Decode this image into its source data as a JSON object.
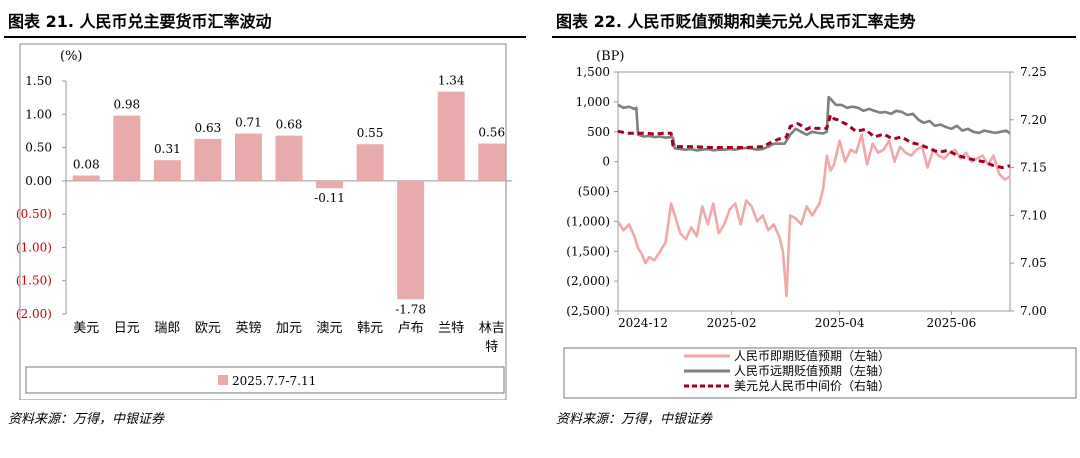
{
  "left": {
    "title": "图表 21. 人民币兑主要货币汇率波动",
    "source": "资料来源：万得，中银证券",
    "chart_data": {
      "type": "bar",
      "ylabel": "(%)",
      "ylim": [
        -2.0,
        1.5
      ],
      "yticks": [
        "1.50",
        "1.00",
        "0.50",
        "0.00",
        "(0.50)",
        "(1.00)",
        "(1.50)",
        "(2.00)"
      ],
      "ytick_values": [
        1.5,
        1.0,
        0.5,
        0.0,
        -0.5,
        -1.0,
        -1.5,
        -2.0
      ],
      "categories": [
        "美元",
        "日元",
        "瑞郎",
        "欧元",
        "英镑",
        "加元",
        "澳元",
        "韩元",
        "卢布",
        "兰特",
        "林吉特"
      ],
      "values": [
        0.08,
        0.98,
        0.31,
        0.63,
        0.71,
        0.68,
        -0.11,
        0.55,
        -1.78,
        1.34,
        0.56
      ],
      "labels": [
        "0.08",
        "0.98",
        "0.31",
        "0.63",
        "0.71",
        "0.68",
        "-0.11",
        "0.55",
        "-1.78",
        "1.34",
        "0.56"
      ],
      "legend": "2025.7.7-7.11",
      "bar_color": "#e8aaaa",
      "negative_tick_color": "#cc0000"
    }
  },
  "right": {
    "title": "图表 22. 人民币贬值预期和美元兑人民币汇率走势",
    "source": "资料来源：万得，中银证券",
    "chart_data": {
      "type": "line",
      "ylabel_left": "(BP)",
      "ylim_left": [
        -2500,
        1500
      ],
      "yticks_left": [
        "1,500",
        "1,000",
        "500",
        "0",
        "(500)",
        "(1,000)",
        "(1,500)",
        "(2,000)",
        "(2,500)"
      ],
      "ytick_values_left": [
        1500,
        1000,
        500,
        0,
        -500,
        -1000,
        -1500,
        -2000,
        -2500
      ],
      "ylim_right": [
        7.0,
        7.25
      ],
      "yticks_right": [
        "7.25",
        "7.20",
        "7.15",
        "7.10",
        "7.05",
        "7.00"
      ],
      "ytick_values_right": [
        7.25,
        7.2,
        7.15,
        7.1,
        7.05,
        7.0
      ],
      "xlim": [
        0,
        214
      ],
      "xticks": [
        "2024-12",
        "2025-02",
        "2025-04",
        "2025-06"
      ],
      "xtick_values": [
        0,
        62,
        121,
        182
      ],
      "series": [
        {
          "name": "人民币即期贬值预期（左轴）",
          "axis": "left",
          "color": "#f0a8a8",
          "dash": "",
          "x": [
            0,
            3,
            6,
            9,
            11,
            13,
            15,
            17,
            20,
            23,
            26,
            29,
            31,
            34,
            37,
            40,
            43,
            46,
            49,
            52,
            55,
            58,
            61,
            64,
            67,
            70,
            73,
            76,
            79,
            82,
            85,
            88,
            90,
            92,
            94,
            97,
            100,
            103,
            106,
            108,
            110,
            112,
            114,
            116,
            118,
            121,
            124,
            127,
            130,
            133,
            136,
            139,
            142,
            145,
            148,
            151,
            154,
            157,
            160,
            163,
            166,
            169,
            172,
            175,
            178,
            181,
            184,
            187,
            190,
            193,
            196,
            199,
            202,
            205,
            208,
            211,
            214
          ],
          "y": [
            -1000,
            -1150,
            -1050,
            -1250,
            -1450,
            -1550,
            -1700,
            -1600,
            -1650,
            -1500,
            -1350,
            -700,
            -900,
            -1200,
            -1300,
            -1100,
            -1250,
            -750,
            -1050,
            -700,
            -1200,
            -1050,
            -800,
            -700,
            -1050,
            -650,
            -750,
            -1000,
            -900,
            -1150,
            -1050,
            -1250,
            -1500,
            -2250,
            -900,
            -950,
            -1050,
            -750,
            -900,
            -800,
            -700,
            -450,
            100,
            -150,
            -50,
            350,
            0,
            200,
            150,
            450,
            -50,
            300,
            150,
            200,
            350,
            0,
            250,
            150,
            100,
            200,
            250,
            -100,
            200,
            100,
            50,
            150,
            200,
            50,
            150,
            0,
            50,
            100,
            -50,
            100,
            -200,
            -300,
            -250
          ]
        },
        {
          "name": "人民币远期贬值预期（左轴）",
          "axis": "left",
          "color": "#7f7f7f",
          "dash": "",
          "x": [
            0,
            3,
            6,
            9,
            10,
            11,
            14,
            17,
            20,
            23,
            26,
            29,
            30,
            31,
            34,
            37,
            40,
            43,
            46,
            49,
            52,
            55,
            58,
            61,
            64,
            67,
            70,
            73,
            76,
            79,
            82,
            85,
            88,
            91,
            94,
            97,
            100,
            103,
            106,
            109,
            112,
            114,
            115,
            116,
            119,
            122,
            125,
            128,
            131,
            134,
            137,
            140,
            143,
            146,
            149,
            152,
            155,
            158,
            161,
            164,
            167,
            170,
            173,
            176,
            179,
            182,
            185,
            188,
            191,
            194,
            197,
            200,
            203,
            206,
            209,
            212,
            214
          ],
          "y": [
            950,
            900,
            920,
            880,
            900,
            450,
            420,
            430,
            410,
            420,
            400,
            410,
            400,
            220,
            210,
            200,
            210,
            190,
            200,
            210,
            190,
            200,
            200,
            210,
            200,
            220,
            230,
            220,
            200,
            210,
            250,
            300,
            300,
            300,
            450,
            550,
            500,
            450,
            500,
            480,
            470,
            500,
            1080,
            1050,
            950,
            950,
            900,
            920,
            900,
            850,
            880,
            850,
            820,
            830,
            800,
            850,
            830,
            780,
            800,
            700,
            650,
            680,
            600,
            620,
            580,
            550,
            600,
            520,
            550,
            500,
            480,
            520,
            500,
            480,
            500,
            520,
            470
          ]
        },
        {
          "name": "美元兑人民币中间价（右轴）",
          "axis": "right",
          "color": "#a50021",
          "dash": "6,4",
          "x": [
            0,
            5,
            10,
            15,
            20,
            25,
            29,
            30,
            32,
            40,
            50,
            60,
            70,
            80,
            82,
            88,
            92,
            94,
            98,
            100,
            103,
            105,
            108,
            112,
            114,
            116,
            118,
            120,
            125,
            130,
            135,
            140,
            145,
            150,
            155,
            160,
            165,
            170,
            175,
            180,
            185,
            190,
            195,
            200,
            205,
            210,
            214
          ],
          "y": [
            7.188,
            7.186,
            7.186,
            7.186,
            7.185,
            7.186,
            7.186,
            7.173,
            7.172,
            7.172,
            7.171,
            7.171,
            7.171,
            7.172,
            7.175,
            7.18,
            7.182,
            7.193,
            7.196,
            7.194,
            7.19,
            7.192,
            7.191,
            7.191,
            7.191,
            7.205,
            7.201,
            7.2,
            7.195,
            7.188,
            7.19,
            7.182,
            7.185,
            7.18,
            7.182,
            7.176,
            7.174,
            7.17,
            7.166,
            7.168,
            7.163,
            7.16,
            7.158,
            7.156,
            7.152,
            7.15,
            7.152
          ]
        }
      ]
    }
  }
}
